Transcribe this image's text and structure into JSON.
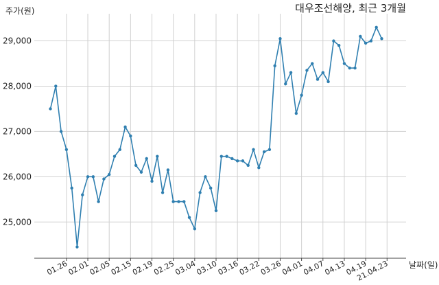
{
  "chart_data": {
    "type": "line",
    "title": "대우조선해양, 최근 3개월",
    "ylabel": "주가(원)",
    "xlabel": "날짜(일)",
    "ylim": [
      24200,
      29600
    ],
    "grid": true,
    "line_color": "#2f7fb0",
    "yticks": [
      {
        "value": 25000,
        "label": "25,000"
      },
      {
        "value": 26000,
        "label": "26,000"
      },
      {
        "value": 27000,
        "label": "27,000"
      },
      {
        "value": 28000,
        "label": "28,000"
      },
      {
        "value": 29000,
        "label": "29,000"
      }
    ],
    "xticks": [
      {
        "index": 3,
        "label": "01.26"
      },
      {
        "index": 7,
        "label": "02.01"
      },
      {
        "index": 11,
        "label": "02.05"
      },
      {
        "index": 15,
        "label": "02.15"
      },
      {
        "index": 19,
        "label": "02.19"
      },
      {
        "index": 23,
        "label": "02.25"
      },
      {
        "index": 27,
        "label": "03.04"
      },
      {
        "index": 31,
        "label": "03.10"
      },
      {
        "index": 35,
        "label": "03.16"
      },
      {
        "index": 39,
        "label": "03.22"
      },
      {
        "index": 43,
        "label": "03.26"
      },
      {
        "index": 47,
        "label": "04.01"
      },
      {
        "index": 51,
        "label": "04.07"
      },
      {
        "index": 55,
        "label": "04.13"
      },
      {
        "index": 59,
        "label": "04.19"
      },
      {
        "index": 63,
        "label": "21.04.23"
      }
    ],
    "values": [
      27500,
      28000,
      27000,
      26600,
      25750,
      24450,
      25600,
      26000,
      26000,
      25450,
      25950,
      26050,
      26450,
      26600,
      27100,
      26900,
      26250,
      26100,
      26400,
      25900,
      26450,
      25650,
      26150,
      25450,
      25450,
      25450,
      25100,
      24850,
      25650,
      26000,
      25750,
      25250,
      26450,
      26450,
      26400,
      26350,
      26350,
      26250,
      26600,
      26200,
      26550,
      26600,
      28450,
      29050,
      28050,
      28300,
      27400,
      27800,
      28350,
      28500,
      28150,
      28300,
      28100,
      29000,
      28900,
      28500,
      28400,
      28400,
      29100,
      28950,
      29000,
      29300,
      29050
    ]
  }
}
